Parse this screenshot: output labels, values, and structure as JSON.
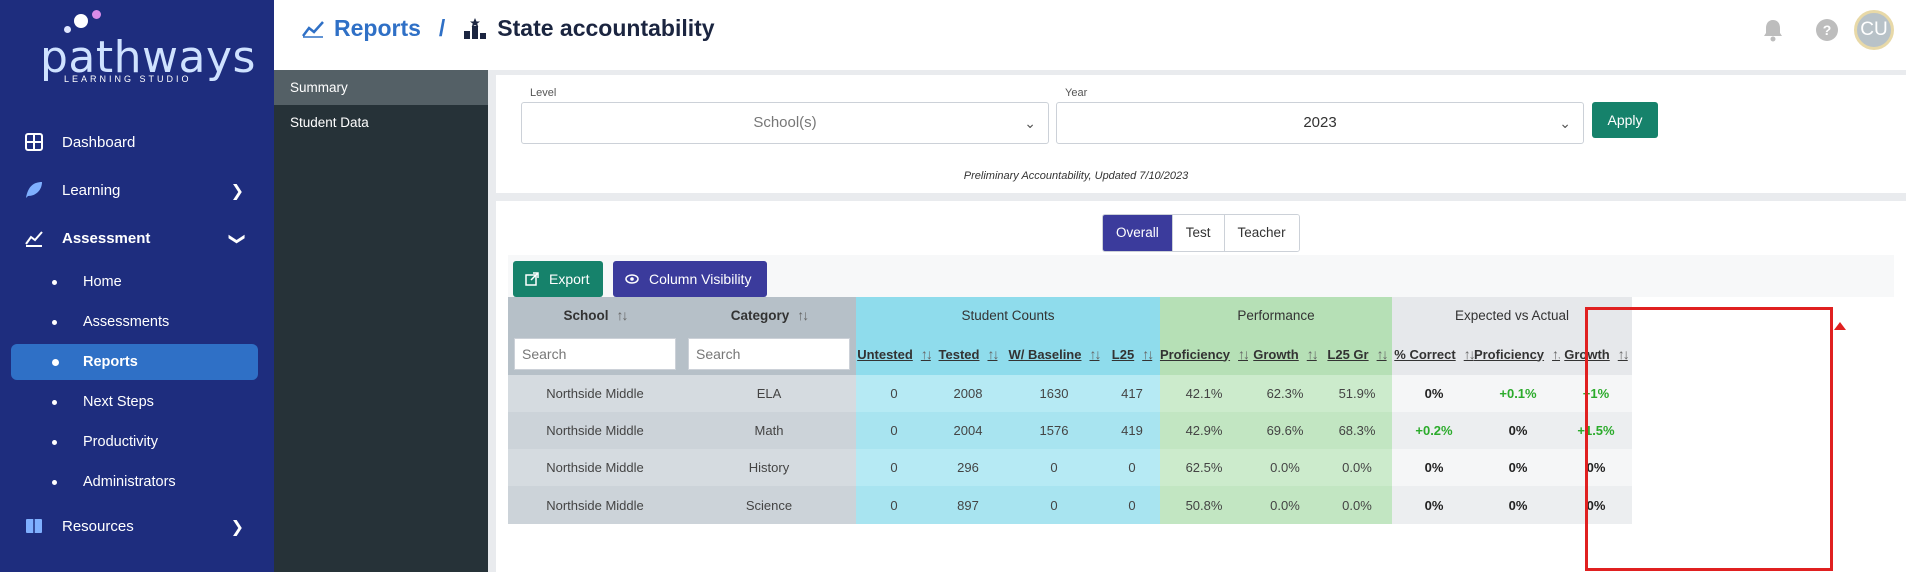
{
  "brand": {
    "name": "pathways",
    "tagline": "LEARNING STUDIO"
  },
  "nav": {
    "dashboard": "Dashboard",
    "learning": "Learning",
    "assessment": "Assessment",
    "assessment_items": [
      "Home",
      "Assessments",
      "Reports",
      "Next Steps",
      "Productivity",
      "Administrators"
    ],
    "resources": "Resources"
  },
  "subnav": {
    "items": [
      "Summary",
      "Student Data"
    ]
  },
  "header": {
    "crumb1": "Reports",
    "separator": "/",
    "crumb2": "State accountability",
    "help": "?",
    "avatar": "CU"
  },
  "filters": {
    "level_label": "Level",
    "level_value": "School(s)",
    "year_label": "Year",
    "year_value": "2023",
    "apply": "Apply",
    "note": "Preliminary Accountability, Updated 7/10/2023"
  },
  "views": [
    "Overall",
    "Test",
    "Teacher"
  ],
  "actions": {
    "export": "Export",
    "column_visibility": "Column Visibility"
  },
  "table": {
    "groups": {
      "school": "School",
      "category": "Category",
      "counts": "Student Counts",
      "performance": "Performance",
      "expected": "Expected vs Actual"
    },
    "columns": [
      "Untested",
      "Tested",
      "W/ Baseline",
      "L25",
      "Proficiency",
      "Growth",
      "L25 Gr",
      "% Correct",
      "Proficiency",
      "Growth"
    ],
    "search_placeholder": "Search",
    "rows": [
      [
        "Northside Middle",
        "ELA",
        "0",
        "2008",
        "1630",
        "417",
        "42.1%",
        "62.3%",
        "51.9%",
        "0%",
        "+0.1%",
        "+1%"
      ],
      [
        "Northside Middle",
        "Math",
        "0",
        "2004",
        "1576",
        "419",
        "42.9%",
        "69.6%",
        "68.3%",
        "+0.2%",
        "0%",
        "+1.5%"
      ],
      [
        "Northside Middle",
        "History",
        "0",
        "296",
        "0",
        "0",
        "62.5%",
        "0.0%",
        "0.0%",
        "0%",
        "0%",
        "0%"
      ],
      [
        "Northside Middle",
        "Science",
        "0",
        "897",
        "0",
        "0",
        "50.8%",
        "0.0%",
        "0.0%",
        "0%",
        "0%",
        "0%"
      ]
    ]
  },
  "colors": {
    "nav_bg": "#1e2d7e",
    "active": "#2f70c6",
    "primary_btn": "#3b3b9c",
    "green_btn": "#16826b",
    "highlight": "#e02020",
    "positive": "#2bab2b"
  }
}
